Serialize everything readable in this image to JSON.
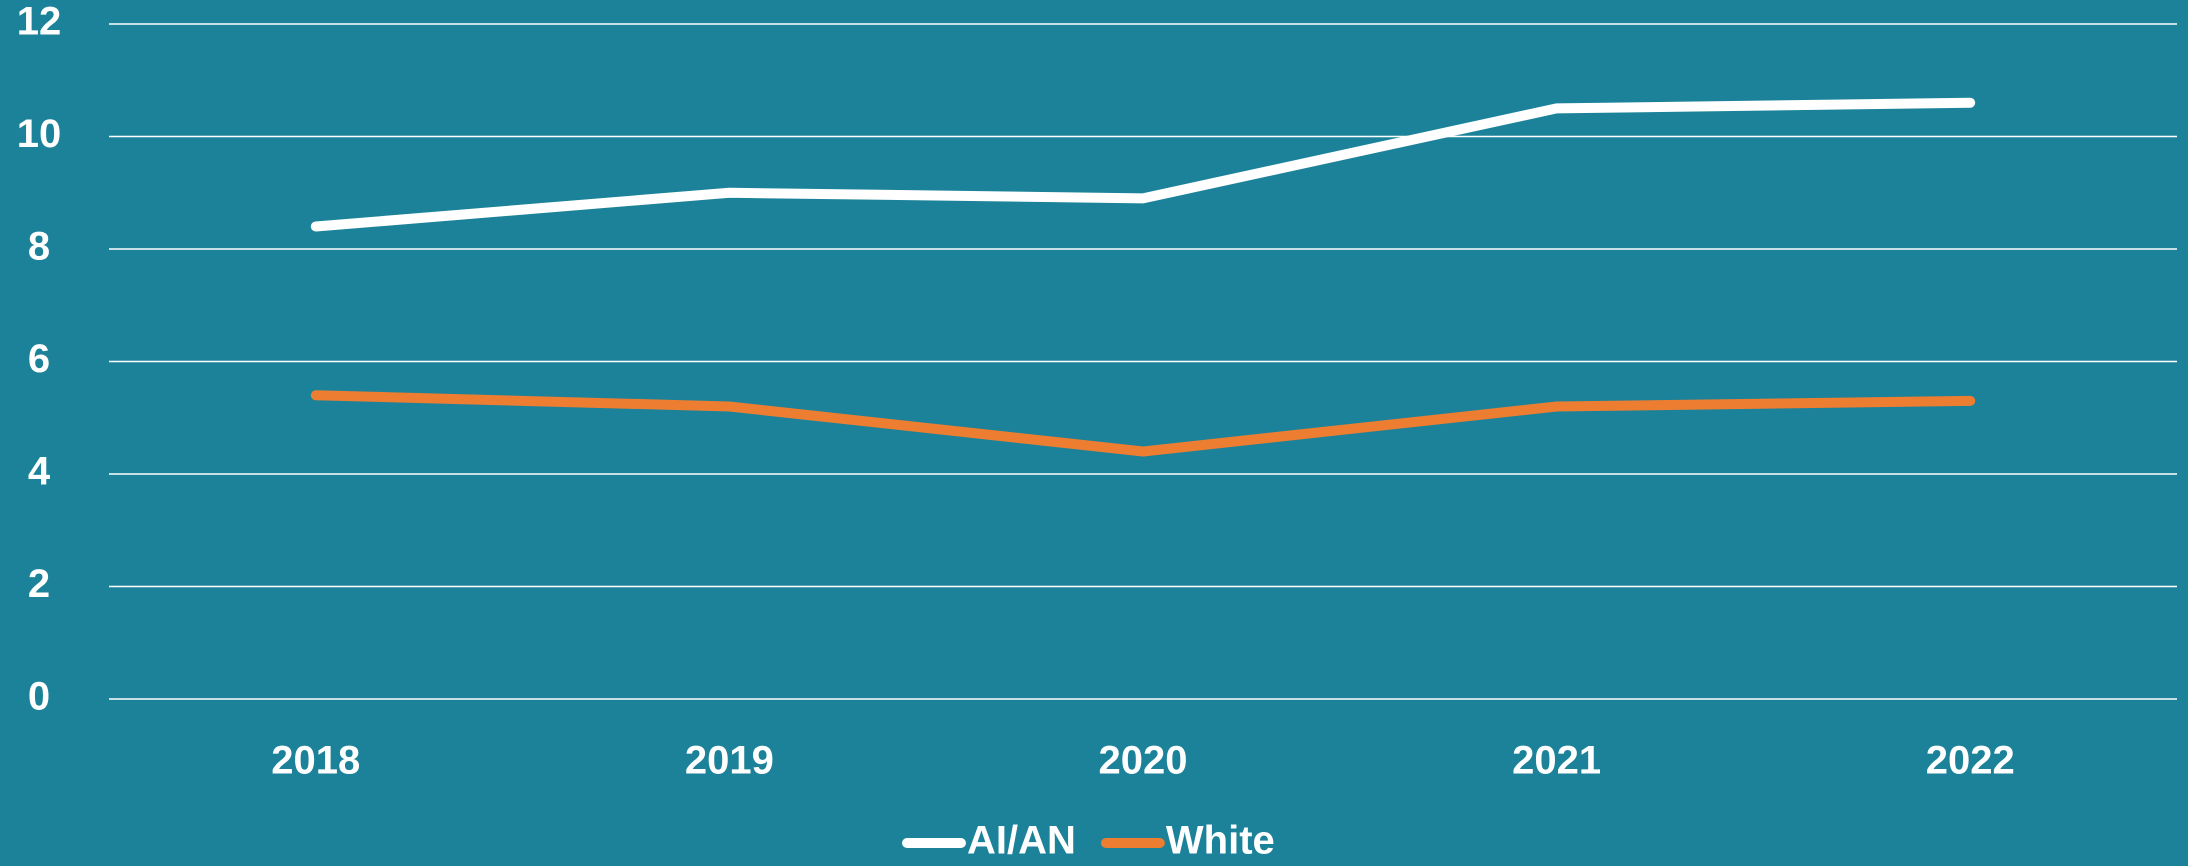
{
  "chart_data": {
    "type": "line",
    "categories": [
      "2018",
      "2019",
      "2020",
      "2021",
      "2022"
    ],
    "series": [
      {
        "name": "AI/AN",
        "color": "#ffffff",
        "values": [
          8.4,
          9.0,
          8.9,
          10.5,
          10.6
        ]
      },
      {
        "name": "White",
        "color": "#ed7d31",
        "values": [
          5.4,
          5.2,
          4.4,
          5.2,
          5.3
        ]
      }
    ],
    "ylim": [
      0,
      12
    ],
    "yticks": [
      0,
      2,
      4,
      6,
      8,
      10,
      12
    ],
    "grid": true,
    "legend": "bottom"
  }
}
